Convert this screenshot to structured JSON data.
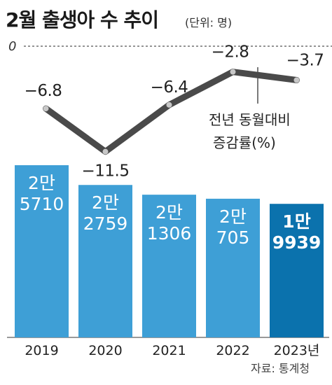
{
  "title": "2월 출생아 수 추이",
  "unit": "(단위: 명)",
  "zero_label": "0",
  "legend": [
    "전년 동월대비",
    "증감률(%)"
  ],
  "source": "자료: 통계청",
  "colors": {
    "bar": "#3e9fd6",
    "bar_highlight": "#0b72ad",
    "line": "#4a4a4a",
    "marker": "#c8c8c8"
  },
  "chart_data": {
    "type": "bar",
    "categories": [
      "2019",
      "2020",
      "2021",
      "2022",
      "2023년"
    ],
    "bar_values": [
      25710,
      22759,
      21306,
      20705,
      19939
    ],
    "bar_labels": [
      [
        "2만",
        "5710"
      ],
      [
        "2만",
        "2759"
      ],
      [
        "2만",
        "1306"
      ],
      [
        "2만",
        "705"
      ],
      [
        "1만",
        "9939"
      ]
    ],
    "line_values": [
      -6.8,
      -11.5,
      -6.4,
      -2.8,
      -3.7
    ],
    "line_labels": [
      "−6.8",
      "−11.5",
      "−6.4",
      "−2.8",
      "−3.7"
    ],
    "highlight_index": 4
  }
}
